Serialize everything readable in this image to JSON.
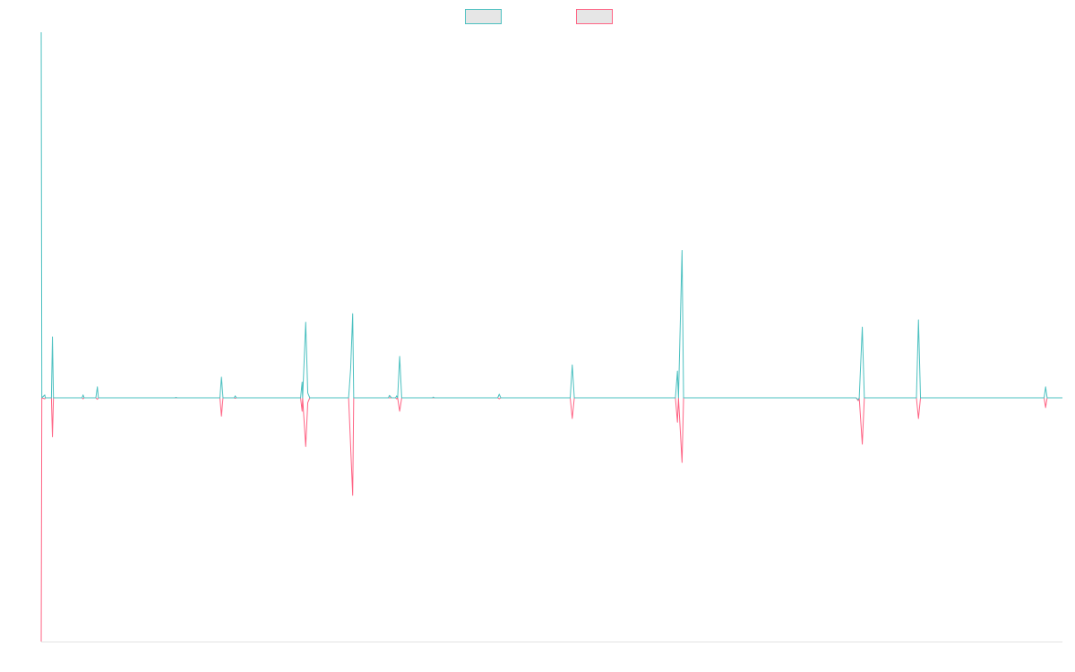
{
  "chart_data": {
    "type": "line",
    "title": "",
    "xlabel": "",
    "ylabel": "",
    "ylim": [
      -1.0,
      1.5
    ],
    "xlim": [
      0,
      1000
    ],
    "grid": false,
    "legend": {
      "placement": "top-center",
      "entries": [
        {
          "name": "",
          "color": "#4bc0c0",
          "fill": "#e6e6e6"
        },
        {
          "name": "",
          "color": "#ff6384",
          "fill": "#e6e6e6"
        }
      ]
    },
    "x": [
      0,
      1,
      2,
      3,
      4,
      5,
      6,
      7,
      8,
      9,
      10,
      11,
      12,
      13,
      14,
      15,
      16,
      17,
      18,
      19,
      20,
      21,
      22,
      23,
      24,
      25,
      26,
      27,
      28,
      29,
      30,
      31,
      32,
      33,
      34,
      35,
      36,
      37,
      38,
      39,
      40,
      41,
      42,
      43,
      44,
      45,
      46,
      47,
      48,
      49,
      50,
      51,
      52,
      53,
      54,
      55,
      56,
      57,
      58,
      59,
      60,
      61,
      62,
      63,
      64,
      65,
      66,
      67,
      68,
      69,
      70,
      71,
      72,
      73,
      74,
      75,
      76,
      77,
      78,
      79,
      80,
      81,
      82,
      83,
      84,
      85,
      86,
      87,
      88,
      89,
      90,
      91,
      92,
      93,
      94,
      95,
      96,
      97,
      98,
      99,
      100
    ],
    "series": [
      {
        "name": "",
        "color": "#4bc0c0",
        "points": [
          [
            0,
            1.5
          ],
          [
            0.6,
            0.0
          ],
          [
            3.5,
            0.012
          ],
          [
            4,
            0.0
          ],
          [
            10,
            0.0
          ],
          [
            11,
            0.25
          ],
          [
            12,
            0.0
          ],
          [
            40,
            0.0
          ],
          [
            41,
            0.012
          ],
          [
            42,
            0.0
          ],
          [
            53.5,
            0.0
          ],
          [
            55,
            0.045
          ],
          [
            56,
            0.0
          ],
          [
            131,
            0.0
          ],
          [
            132,
            0.002
          ],
          [
            133,
            0.0
          ],
          [
            175,
            0.0
          ],
          [
            176.5,
            0.085
          ],
          [
            178,
            0.0
          ],
          [
            189,
            0.0
          ],
          [
            190,
            0.008
          ],
          [
            191,
            0.0
          ],
          [
            254,
            0.0
          ],
          [
            255.5,
            0.065
          ],
          [
            256,
            0.0
          ],
          [
            259,
            0.31
          ],
          [
            261,
            0.02
          ],
          [
            263,
            0.0
          ],
          [
            301,
            0.0
          ],
          [
            303,
            0.12
          ],
          [
            305,
            0.345
          ],
          [
            306,
            0.0
          ],
          [
            340,
            0.0
          ],
          [
            341,
            0.01
          ],
          [
            343,
            0.0
          ],
          [
            347,
            0.0
          ],
          [
            348,
            0.008
          ],
          [
            349,
            0.0
          ],
          [
            351,
            0.17
          ],
          [
            353,
            0.0
          ],
          [
            383,
            0.0
          ],
          [
            384,
            0.003
          ],
          [
            385,
            0.0
          ],
          [
            447,
            0.0
          ],
          [
            448.5,
            0.015
          ],
          [
            450,
            0.0
          ],
          [
            518,
            0.0
          ],
          [
            520,
            0.135
          ],
          [
            522,
            0.0
          ],
          [
            621,
            0.0
          ],
          [
            623,
            0.11
          ],
          [
            624,
            0.0
          ],
          [
            627.5,
            0.605
          ],
          [
            629,
            0.0
          ],
          [
            798,
            0.0
          ],
          [
            800,
            -0.008
          ],
          [
            801,
            0.0
          ],
          [
            804,
            0.29
          ],
          [
            806,
            0.0
          ],
          [
            857,
            0.0
          ],
          [
            859,
            0.32
          ],
          [
            861,
            0.0
          ],
          [
            982,
            0.0
          ],
          [
            983.5,
            0.045
          ],
          [
            985,
            0.0
          ],
          [
            1000,
            0.0
          ]
        ]
      },
      {
        "name": "",
        "color": "#ff6384",
        "points": [
          [
            0,
            -1.0
          ],
          [
            0.6,
            0.0
          ],
          [
            3.5,
            -0.004
          ],
          [
            4,
            0.0
          ],
          [
            10,
            0.0
          ],
          [
            11,
            -0.16
          ],
          [
            12,
            0.0
          ],
          [
            40,
            0.0
          ],
          [
            41,
            -0.004
          ],
          [
            42,
            0.0
          ],
          [
            53.5,
            0.0
          ],
          [
            55,
            -0.006
          ],
          [
            56,
            0.0
          ],
          [
            175,
            0.0
          ],
          [
            176.5,
            -0.075
          ],
          [
            178,
            0.0
          ],
          [
            189,
            0.0
          ],
          [
            190,
            -0.002
          ],
          [
            191,
            0.0
          ],
          [
            254,
            0.0
          ],
          [
            255.5,
            -0.055
          ],
          [
            256,
            0.0
          ],
          [
            259,
            -0.2
          ],
          [
            261,
            -0.02
          ],
          [
            263,
            0.0
          ],
          [
            301,
            0.0
          ],
          [
            303,
            -0.2
          ],
          [
            305,
            -0.4
          ],
          [
            306,
            0.0
          ],
          [
            347,
            0.0
          ],
          [
            348,
            -0.004
          ],
          [
            349,
            0.0
          ],
          [
            351,
            -0.055
          ],
          [
            353,
            0.0
          ],
          [
            447,
            0.0
          ],
          [
            448.5,
            -0.004
          ],
          [
            450,
            0.0
          ],
          [
            518,
            0.0
          ],
          [
            520,
            -0.085
          ],
          [
            522,
            0.0
          ],
          [
            621,
            0.0
          ],
          [
            623,
            -0.1
          ],
          [
            624,
            0.0
          ],
          [
            627.5,
            -0.265
          ],
          [
            629,
            0.0
          ],
          [
            798,
            0.0
          ],
          [
            800,
            -0.012
          ],
          [
            801,
            0.0
          ],
          [
            804,
            -0.19
          ],
          [
            806,
            0.0
          ],
          [
            857,
            0.0
          ],
          [
            859,
            -0.085
          ],
          [
            861,
            0.0
          ],
          [
            982,
            0.0
          ],
          [
            983.5,
            -0.04
          ],
          [
            985,
            0.0
          ],
          [
            1000,
            0.0
          ]
        ]
      }
    ]
  }
}
